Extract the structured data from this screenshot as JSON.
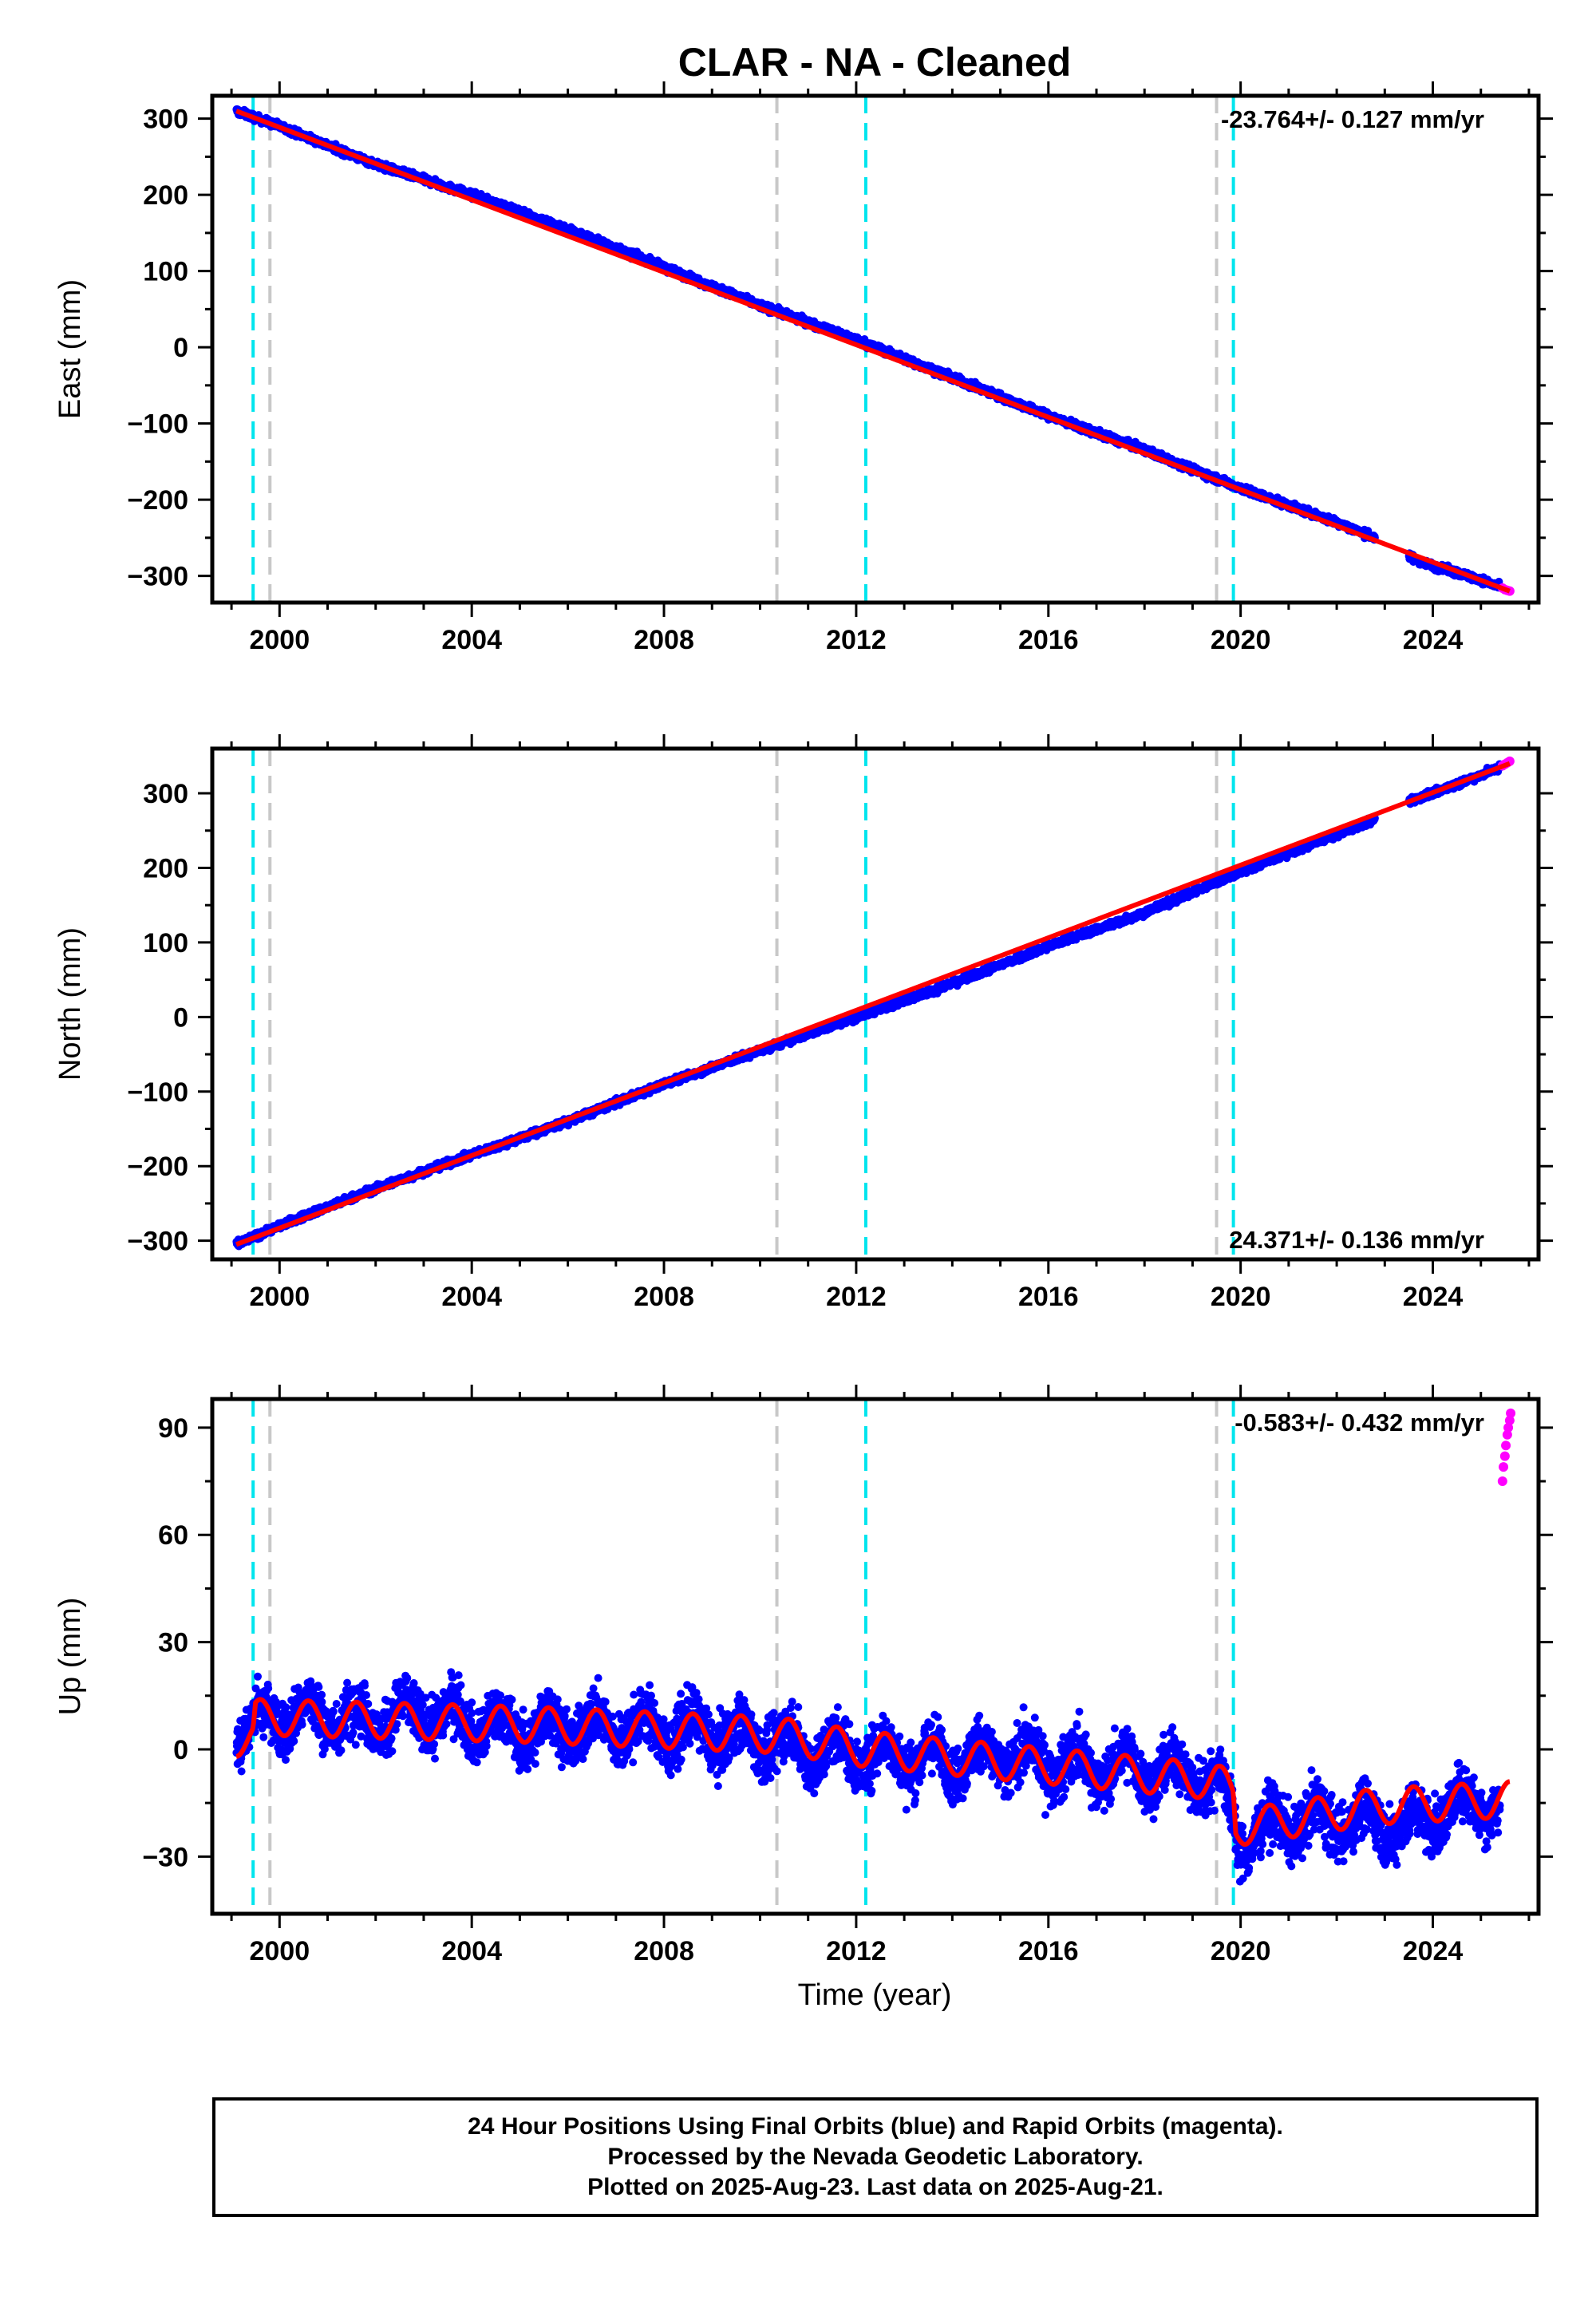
{
  "chart_data": {
    "title": "CLAR  - NA - Cleaned",
    "type": "scatter",
    "x_ticks": [
      "2000",
      "2004",
      "2008",
      "2012",
      "2016",
      "2020",
      "2024"
    ],
    "x_tick_values": [
      2000,
      2004,
      2008,
      2012,
      2016,
      2020,
      2024
    ],
    "xlim": [
      1998.6,
      2026.2
    ],
    "xlabel": "Time (year)",
    "vlines": {
      "cyan": [
        1999.45,
        2012.2,
        2019.85
      ],
      "gray": [
        1999.8,
        2010.35,
        2019.5
      ]
    },
    "colors": {
      "final_orbits": "#0000ff",
      "rapid_orbits": "#ff00ff",
      "model": "#ff0000",
      "equipment_change": "#c8c8c8",
      "earthquake": "#00e5ee"
    },
    "panels": [
      {
        "key": "east",
        "ylabel": "East (mm)",
        "ylim": [
          -335,
          330
        ],
        "y_ticks": [
          300,
          200,
          100,
          0,
          -100,
          -200,
          -300
        ],
        "y_tick_labels": [
          "300",
          "200",
          "100",
          "0",
          "−100",
          "−200",
          "−300"
        ],
        "rate_label": "-23.764+/- 0.127 mm/yr",
        "rate_position": "top-right",
        "series": [
          {
            "name": "final",
            "x": [
              1999.1,
              2000.0,
              2002.0,
              2004.0,
              2006.0,
              2008.0,
              2010.0,
              2012.0,
              2014.0,
              2016.0,
              2018.0,
              2020.0,
              2022.0,
              2022.8
            ],
            "y": [
              310,
              290,
              240,
              200,
              155,
              105,
              55,
              10,
              -40,
              -90,
              -135,
              -185,
              -230,
              -250
            ]
          },
          {
            "name": "final",
            "x": [
              2023.5,
              2024.0,
              2025.0,
              2025.4
            ],
            "y": [
              -275,
              -287,
              -305,
              -315
            ]
          },
          {
            "name": "rapid",
            "x": [
              2025.45,
              2025.5,
              2025.55,
              2025.6
            ],
            "y": [
              -316,
              -318,
              -319,
              -320
            ]
          }
        ],
        "model": {
          "x": [
            1999.1,
            2025.6
          ],
          "y": [
            310,
            -320
          ]
        }
      },
      {
        "key": "north",
        "ylabel": "North (mm)",
        "ylim": [
          -325,
          360
        ],
        "y_ticks": [
          300,
          200,
          100,
          0,
          -100,
          -200,
          -300
        ],
        "y_tick_labels": [
          "300",
          "200",
          "100",
          "0",
          "−100",
          "−200",
          "−300"
        ],
        "rate_label": "24.371+/- 0.136 mm/yr",
        "rate_position": "bottom-right",
        "series": [
          {
            "name": "final",
            "x": [
              1999.1,
              2000.0,
              2002.0,
              2004.0,
              2006.0,
              2008.0,
              2010.0,
              2012.0,
              2014.0,
              2016.0,
              2018.0,
              2020.0,
              2022.0,
              2022.8
            ],
            "y": [
              -305,
              -280,
              -230,
              -185,
              -140,
              -90,
              -45,
              0,
              45,
              95,
              140,
              195,
              245,
              265
            ]
          },
          {
            "name": "final",
            "x": [
              2023.5,
              2024.0,
              2025.0,
              2025.4
            ],
            "y": [
              290,
              300,
              325,
              335
            ]
          },
          {
            "name": "rapid",
            "x": [
              2025.45,
              2025.5,
              2025.55,
              2025.6
            ],
            "y": [
              337,
              339,
              341,
              343
            ]
          }
        ],
        "model": {
          "x": [
            1999.1,
            2025.6
          ],
          "y": [
            -305,
            340
          ]
        }
      },
      {
        "key": "up",
        "ylabel": "Up (mm)",
        "ylim": [
          -46,
          98
        ],
        "y_ticks": [
          90,
          60,
          30,
          0,
          -30
        ],
        "y_tick_labels": [
          "90",
          "60",
          "30",
          "0",
          "−30"
        ],
        "rate_label": "-0.583+/- 0.432 mm/yr",
        "rate_position": "top-right",
        "series": [
          {
            "name": "final",
            "x": [
              1999.1,
              2000.0,
              2001.0,
              2002.0,
              2003.0,
              2004.0,
              2005.0,
              2006.0,
              2007.0,
              2008.0,
              2009.0,
              2010.0,
              2011.0,
              2012.0,
              2013.0,
              2014.0,
              2015.0,
              2016.0,
              2017.0,
              2018.0,
              2019.0,
              2019.6,
              2020.0,
              2021.0,
              2022.0,
              2022.7,
              2023.5,
              2024.0,
              2025.0,
              2025.4
            ],
            "y": [
              5,
              10,
              9,
              8,
              10,
              8,
              5,
              6,
              6,
              5,
              5,
              3,
              0,
              -1,
              -2,
              -3,
              -2,
              -4,
              -5,
              -6,
              -7,
              -10,
              -25,
              -20,
              -20,
              -20,
              -22,
              -18,
              -14,
              -16
            ]
          },
          {
            "name": "rapid",
            "x": [
              2025.45,
              2025.47,
              2025.5,
              2025.52,
              2025.55,
              2025.57,
              2025.6,
              2025.62
            ],
            "y": [
              75,
              79,
              82,
              85,
              88,
              90,
              92,
              94
            ]
          }
        ],
        "model": {
          "trend": [
            [
              1999.1,
              3
            ],
            [
              1999.45,
              3
            ],
            [
              1999.5,
              9
            ],
            [
              2005.0,
              7
            ],
            [
              2010.35,
              4
            ],
            [
              2012.2,
              0
            ],
            [
              2019.5,
              -9
            ],
            [
              2019.85,
              -12
            ],
            [
              2019.9,
              -22
            ],
            [
              2022.8,
              -16
            ],
            [
              2025.6,
              -14
            ]
          ],
          "annual_amplitude": 5
        }
      }
    ]
  },
  "caption": {
    "line1": "24 Hour Positions Using Final Orbits (blue) and Rapid Orbits (magenta).",
    "line2": "Processed by the Nevada Geodetic Laboratory.",
    "line3": "Plotted on 2025-Aug-23. Last data on 2025-Aug-21."
  }
}
